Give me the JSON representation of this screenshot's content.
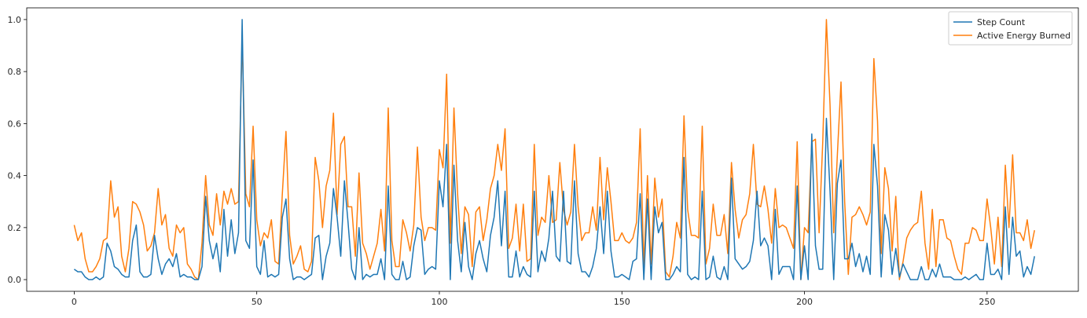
{
  "chart_data": {
    "type": "line",
    "title": "",
    "xlabel": "",
    "ylabel": "",
    "xlim": [
      -13,
      275
    ],
    "ylim": [
      -0.045,
      1.045
    ],
    "xticks": [
      0,
      50,
      100,
      150,
      200,
      250
    ],
    "yticks": [
      0.0,
      0.2,
      0.4,
      0.6,
      0.8,
      1.0
    ],
    "grid": false,
    "legend_position": "top-right",
    "series": [
      {
        "name": "Step Count",
        "color": "#1f77b4",
        "x_start": 0,
        "values": [
          0.04,
          0.03,
          0.03,
          0.01,
          0.0,
          0.0,
          0.01,
          0.0,
          0.01,
          0.14,
          0.11,
          0.05,
          0.04,
          0.02,
          0.01,
          0.01,
          0.15,
          0.21,
          0.03,
          0.01,
          0.01,
          0.02,
          0.17,
          0.08,
          0.02,
          0.06,
          0.08,
          0.05,
          0.1,
          0.01,
          0.02,
          0.01,
          0.01,
          0.0,
          0.0,
          0.05,
          0.32,
          0.15,
          0.08,
          0.14,
          0.03,
          0.27,
          0.09,
          0.23,
          0.1,
          0.18,
          1.0,
          0.15,
          0.12,
          0.46,
          0.05,
          0.02,
          0.15,
          0.01,
          0.02,
          0.01,
          0.02,
          0.24,
          0.31,
          0.08,
          0.0,
          0.01,
          0.01,
          0.0,
          0.01,
          0.02,
          0.16,
          0.17,
          0.0,
          0.09,
          0.14,
          0.35,
          0.24,
          0.09,
          0.38,
          0.22,
          0.04,
          0.0,
          0.2,
          0.0,
          0.02,
          0.01,
          0.02,
          0.02,
          0.08,
          0.0,
          0.36,
          0.02,
          0.0,
          0.0,
          0.07,
          0.0,
          0.01,
          0.13,
          0.2,
          0.19,
          0.02,
          0.04,
          0.05,
          0.04,
          0.38,
          0.28,
          0.52,
          0.0,
          0.44,
          0.15,
          0.03,
          0.22,
          0.05,
          0.0,
          0.1,
          0.15,
          0.08,
          0.03,
          0.17,
          0.24,
          0.38,
          0.13,
          0.34,
          0.01,
          0.01,
          0.11,
          0.01,
          0.05,
          0.02,
          0.01,
          0.34,
          0.03,
          0.11,
          0.07,
          0.16,
          0.34,
          0.09,
          0.07,
          0.34,
          0.07,
          0.06,
          0.38,
          0.1,
          0.03,
          0.03,
          0.01,
          0.05,
          0.12,
          0.28,
          0.1,
          0.34,
          0.11,
          0.01,
          0.01,
          0.02,
          0.01,
          0.0,
          0.07,
          0.08,
          0.33,
          0.0,
          0.31,
          0.0,
          0.28,
          0.18,
          0.22,
          0.0,
          0.0,
          0.02,
          0.05,
          0.03,
          0.47,
          0.02,
          0.0,
          0.01,
          0.0,
          0.34,
          0.0,
          0.01,
          0.09,
          0.01,
          0.0,
          0.05,
          0.0,
          0.39,
          0.08,
          0.06,
          0.04,
          0.05,
          0.07,
          0.15,
          0.34,
          0.13,
          0.16,
          0.13,
          0.0,
          0.27,
          0.02,
          0.05,
          0.05,
          0.05,
          0.0,
          0.36,
          0.0,
          0.13,
          0.0,
          0.56,
          0.13,
          0.04,
          0.04,
          0.62,
          0.34,
          0.0,
          0.37,
          0.46,
          0.08,
          0.08,
          0.14,
          0.05,
          0.1,
          0.03,
          0.09,
          0.02,
          0.52,
          0.36,
          0.01,
          0.25,
          0.19,
          0.02,
          0.12,
          0.01,
          0.06,
          0.03,
          0.0,
          0.0,
          0.0,
          0.05,
          0.0,
          0.0,
          0.04,
          0.01,
          0.06,
          0.01,
          0.01,
          0.01,
          0.0,
          0.0,
          0.0,
          0.01,
          0.0,
          0.01,
          0.02,
          0.0,
          0.0,
          0.14,
          0.02,
          0.02,
          0.04,
          0.0,
          0.28,
          0.02,
          0.24,
          0.09,
          0.11,
          0.01,
          0.05,
          0.02,
          0.09
        ]
      },
      {
        "name": "Active Energy Burned",
        "color": "#ff7f0e",
        "x_start": 0,
        "values": [
          0.21,
          0.15,
          0.18,
          0.08,
          0.03,
          0.03,
          0.05,
          0.08,
          0.15,
          0.16,
          0.38,
          0.24,
          0.28,
          0.09,
          0.03,
          0.12,
          0.3,
          0.29,
          0.26,
          0.21,
          0.11,
          0.13,
          0.18,
          0.35,
          0.21,
          0.25,
          0.12,
          0.09,
          0.21,
          0.18,
          0.2,
          0.06,
          0.04,
          0.01,
          0.0,
          0.14,
          0.4,
          0.21,
          0.17,
          0.33,
          0.21,
          0.34,
          0.29,
          0.35,
          0.29,
          0.3,
          0.93,
          0.33,
          0.28,
          0.59,
          0.23,
          0.13,
          0.18,
          0.16,
          0.23,
          0.07,
          0.06,
          0.33,
          0.57,
          0.17,
          0.06,
          0.09,
          0.13,
          0.04,
          0.03,
          0.07,
          0.47,
          0.38,
          0.2,
          0.36,
          0.42,
          0.64,
          0.25,
          0.52,
          0.55,
          0.28,
          0.28,
          0.09,
          0.41,
          0.14,
          0.1,
          0.04,
          0.09,
          0.14,
          0.27,
          0.11,
          0.66,
          0.15,
          0.05,
          0.05,
          0.23,
          0.18,
          0.11,
          0.21,
          0.51,
          0.24,
          0.15,
          0.2,
          0.2,
          0.19,
          0.5,
          0.43,
          0.79,
          0.14,
          0.66,
          0.33,
          0.1,
          0.28,
          0.25,
          0.05,
          0.26,
          0.28,
          0.15,
          0.23,
          0.35,
          0.4,
          0.52,
          0.42,
          0.58,
          0.12,
          0.16,
          0.29,
          0.11,
          0.29,
          0.07,
          0.08,
          0.52,
          0.17,
          0.24,
          0.22,
          0.4,
          0.22,
          0.23,
          0.45,
          0.27,
          0.21,
          0.26,
          0.52,
          0.28,
          0.15,
          0.18,
          0.18,
          0.28,
          0.19,
          0.47,
          0.23,
          0.43,
          0.3,
          0.15,
          0.15,
          0.18,
          0.15,
          0.14,
          0.16,
          0.22,
          0.58,
          0.05,
          0.4,
          0.06,
          0.39,
          0.24,
          0.31,
          0.03,
          0.01,
          0.09,
          0.22,
          0.16,
          0.63,
          0.27,
          0.17,
          0.17,
          0.16,
          0.59,
          0.06,
          0.12,
          0.29,
          0.17,
          0.17,
          0.25,
          0.1,
          0.45,
          0.27,
          0.16,
          0.23,
          0.25,
          0.33,
          0.52,
          0.29,
          0.28,
          0.36,
          0.27,
          0.14,
          0.35,
          0.2,
          0.21,
          0.2,
          0.16,
          0.12,
          0.53,
          0.0,
          0.2,
          0.18,
          0.53,
          0.54,
          0.18,
          0.53,
          1.0,
          0.67,
          0.18,
          0.48,
          0.76,
          0.3,
          0.02,
          0.24,
          0.25,
          0.28,
          0.25,
          0.21,
          0.26,
          0.85,
          0.61,
          0.1,
          0.43,
          0.35,
          0.11,
          0.32,
          0.0,
          0.07,
          0.16,
          0.19,
          0.21,
          0.22,
          0.34,
          0.14,
          0.04,
          0.27,
          0.05,
          0.23,
          0.23,
          0.16,
          0.15,
          0.09,
          0.04,
          0.02,
          0.14,
          0.14,
          0.2,
          0.19,
          0.15,
          0.15,
          0.31,
          0.2,
          0.06,
          0.24,
          0.05,
          0.44,
          0.2,
          0.48,
          0.18,
          0.18,
          0.15,
          0.23,
          0.12,
          0.19
        ]
      }
    ]
  }
}
